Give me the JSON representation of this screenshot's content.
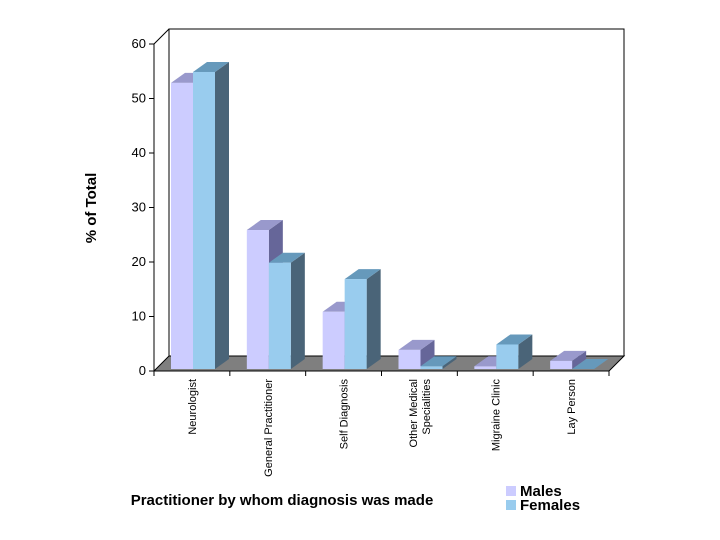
{
  "chart_data": {
    "type": "bar",
    "title": "",
    "xlabel": "Practitioner by whom diagnosis was made",
    "ylabel": "% of Total",
    "ylim": [
      0,
      60
    ],
    "yticks": [
      "0",
      "10",
      "20",
      "30",
      "40",
      "50",
      "60"
    ],
    "categories": [
      [
        "Neurologist"
      ],
      [
        "General Practitioner"
      ],
      [
        "Self Diagnosis"
      ],
      [
        "Other Medical",
        "Specialities"
      ],
      [
        "Migraine Clinic"
      ],
      [
        "Lay Person"
      ]
    ],
    "series": [
      {
        "name": "Males",
        "values": [
          52.5,
          25.5,
          10.5,
          3.5,
          0.5,
          1.5
        ]
      },
      {
        "name": "Females",
        "values": [
          54.5,
          19.5,
          16.5,
          0.5,
          4.5,
          0.0
        ]
      }
    ],
    "legend_position": "bottom-right"
  },
  "colors": {
    "males_front": "#ccccff",
    "males_top": "#9999cc",
    "males_side": "#666699",
    "females_front": "#99ccee",
    "females_top": "#6699bb",
    "females_side": "#4a6478",
    "floor": "#7f7f7f",
    "floor_side": "#666666"
  }
}
